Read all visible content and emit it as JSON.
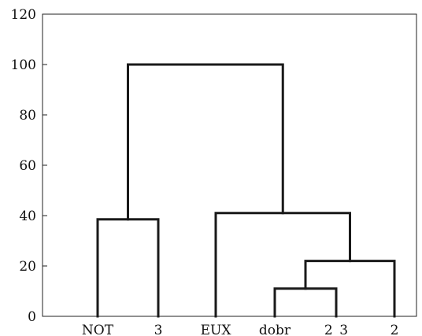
{
  "chart_data": {
    "type": "dendrogram",
    "title": "",
    "xlabel": "",
    "ylabel": "",
    "ylim": [
      0,
      120
    ],
    "yticks": [
      0,
      20,
      40,
      60,
      80,
      100,
      120
    ],
    "grid": false,
    "leaves": [
      "NOT",
      "3",
      "EUX",
      "dobr",
      "2_3",
      "2"
    ],
    "links": [
      {
        "left": "leaf:dobr",
        "right": "leaf:2_3",
        "height": 11
      },
      {
        "left": "node:0",
        "right": "leaf:2",
        "height": 22
      },
      {
        "left": "leaf:EUX",
        "right": "node:1",
        "height": 41
      },
      {
        "left": "leaf:NOT",
        "right": "leaf:3",
        "height": 38.5
      },
      {
        "left": "node:3",
        "right": "node:2",
        "height": 100
      }
    ]
  }
}
